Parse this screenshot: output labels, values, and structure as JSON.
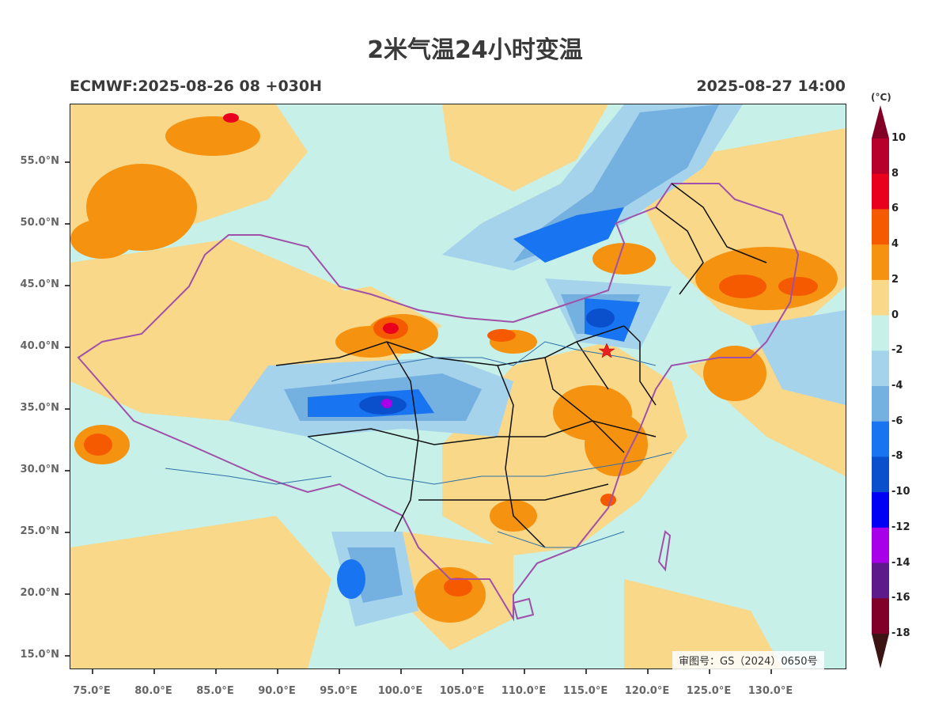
{
  "title": "2米气温24小时变温",
  "model_run": "ECMWF:2025-08-26 08 +030H",
  "valid_time": "2025-08-27 14:00",
  "approval_number": "审图号：GS（2024）0650号",
  "colorbar": {
    "unit": "(°C)",
    "labels": [
      "10",
      "8",
      "6",
      "4",
      "2",
      "0",
      "-2",
      "-4",
      "-6",
      "-8",
      "-10",
      "-12",
      "-14",
      "-16",
      "-18"
    ],
    "colors": [
      "#b8002c",
      "#e8001c",
      "#f55a00",
      "#f5920f",
      "#f9d88a",
      "#c6f0e8",
      "#a6d3ec",
      "#74b0e0",
      "#1874f0",
      "#0a4fcb",
      "#0000f5",
      "#a800e8",
      "#5c1a8a",
      "#80002a"
    ],
    "top_extend_color": "#820025",
    "bottom_extend_color": "#3c1414"
  },
  "latitude_labels": [
    "55.0°N",
    "50.0°N",
    "45.0°N",
    "40.0°N",
    "35.0°N",
    "30.0°N",
    "25.0°N",
    "20.0°N",
    "15.0°N"
  ],
  "longitude_labels": [
    "75.0°E",
    "80.0°E",
    "85.0°E",
    "90.0°E",
    "95.0°E",
    "100.0°E",
    "105.0°E",
    "110.0°E",
    "115.0°E",
    "120.0°E",
    "125.0°E",
    "130.0°E"
  ],
  "marker": {
    "name": "beijing-star-marker",
    "color": "#e82020"
  },
  "colors": {
    "country_border": "#a050a8",
    "province_border": "#111111",
    "river": "#2e6fa8"
  }
}
